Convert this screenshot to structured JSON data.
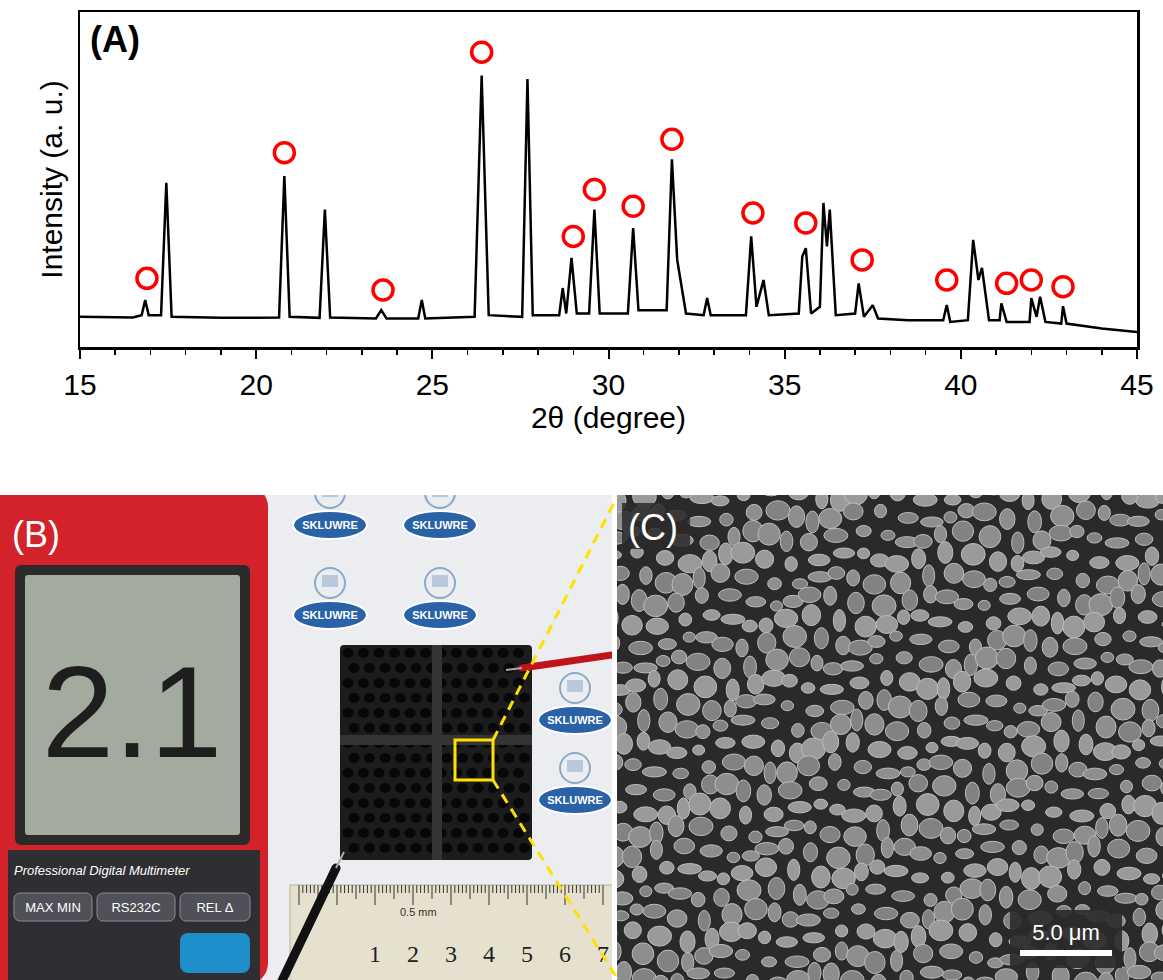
{
  "chart_data": {
    "type": "line",
    "panel_label": "(A)",
    "xlabel": "2θ (degree)",
    "ylabel": "Intensity (a. u.)",
    "xlim": [
      15,
      45
    ],
    "xticks": [
      15,
      20,
      25,
      30,
      35,
      40,
      45
    ],
    "ylim": [
      0,
      100
    ],
    "yticks": [],
    "tick_labels": "x",
    "grid": false,
    "series": [
      {
        "type": "line",
        "color": "#000000",
        "x": [
          15.0,
          16.5,
          16.75,
          16.85,
          16.95,
          17.3,
          17.45,
          17.6,
          19.0,
          20.65,
          20.8,
          20.95,
          21.8,
          21.95,
          22.1,
          23.4,
          23.55,
          23.7,
          24.6,
          24.7,
          24.8,
          26.2,
          26.4,
          26.6,
          27.55,
          27.7,
          27.85,
          28.6,
          28.7,
          28.8,
          28.95,
          29.1,
          29.45,
          29.6,
          29.75,
          30.55,
          30.7,
          30.85,
          31.65,
          31.8,
          31.95,
          32.2,
          32.7,
          32.8,
          32.9,
          33.9,
          34.05,
          34.2,
          34.4,
          34.55,
          35.4,
          35.5,
          35.6,
          35.75,
          36.0,
          36.1,
          36.2,
          36.28,
          36.45,
          37.0,
          37.1,
          37.25,
          37.5,
          37.65,
          38.5,
          39.5,
          39.6,
          39.7,
          40.2,
          40.35,
          40.5,
          40.6,
          40.8,
          41.1,
          41.15,
          41.3,
          41.95,
          42.0,
          42.15,
          42.25,
          42.4,
          42.85,
          42.9,
          43.0,
          44.0,
          45.0
        ],
        "values": [
          9.0,
          8.8,
          9.5,
          14,
          9.5,
          9.5,
          49,
          9,
          8.7,
          8.8,
          51,
          9,
          8.7,
          41,
          8.8,
          8.5,
          11,
          8.5,
          8.5,
          14,
          8.5,
          9,
          81,
          9.5,
          9,
          80,
          9.5,
          9.5,
          17.6,
          10,
          26.6,
          10,
          10,
          41,
          10,
          10,
          35.5,
          11,
          11,
          56,
          26,
          10,
          9.5,
          14.6,
          9.5,
          9.5,
          33,
          12,
          20,
          9.5,
          10,
          27,
          29.5,
          10,
          12,
          43,
          30,
          41,
          9.5,
          10,
          19,
          9,
          12.5,
          8.5,
          8,
          8,
          12.5,
          7.5,
          8,
          32,
          20,
          23.6,
          8,
          8,
          13,
          7.5,
          7.5,
          14.6,
          9,
          15,
          7.5,
          7,
          12.2,
          7,
          5.5,
          4.5
        ]
      },
      {
        "type": "scatter",
        "color": "#ff0000",
        "marker": "circle-open",
        "x": [
          16.9,
          20.8,
          23.6,
          26.4,
          29.0,
          29.6,
          30.7,
          31.8,
          34.1,
          35.6,
          37.2,
          39.6,
          41.3,
          42.0,
          42.9
        ],
        "values": [
          20.5,
          58,
          17,
          88,
          33,
          47,
          42,
          62,
          40,
          37,
          26,
          20,
          19,
          20,
          18
        ]
      }
    ]
  },
  "photo": {
    "label": "(B)",
    "meter_reading": "2.1",
    "meter_brand": "Professional Digital Multimeter",
    "buttons": [
      "MAX MIN",
      "RS232C",
      "REL Δ"
    ],
    "logo_text": "SKLUWRE",
    "ruler_numbers": [
      1,
      2,
      3,
      4,
      5,
      6,
      7
    ],
    "ruler_unit": "0.5 mm"
  },
  "sem_image": {
    "label": "(C)",
    "scale_bar": "5.0 μm"
  }
}
